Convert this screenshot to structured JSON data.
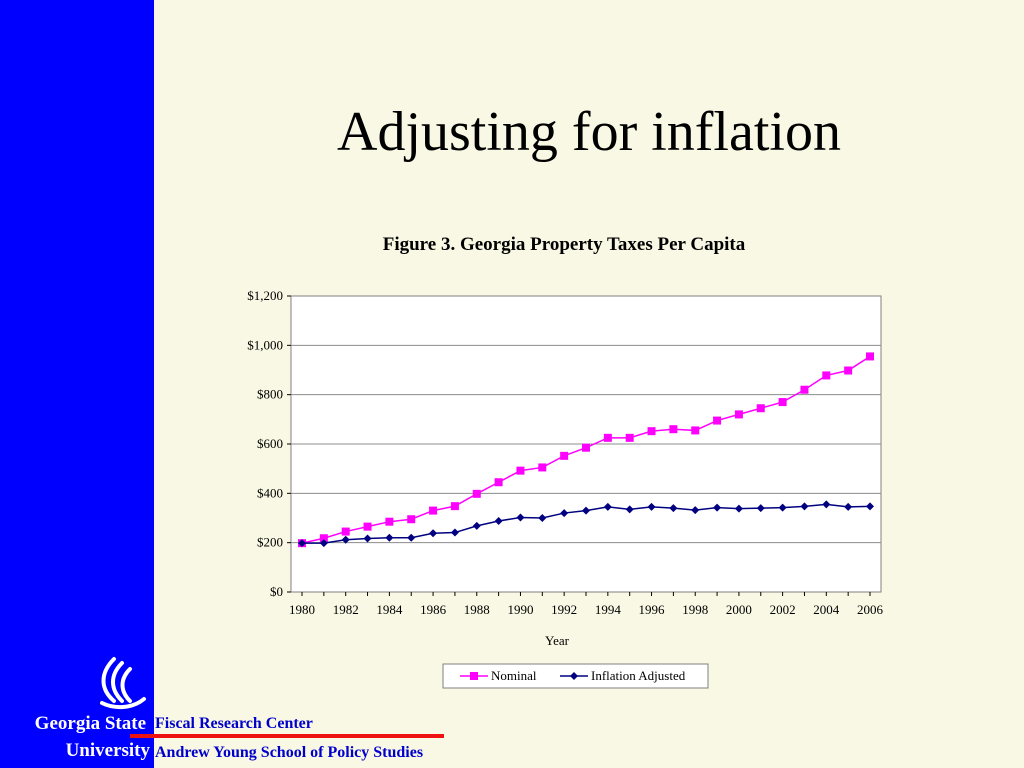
{
  "slide": {
    "title": "Adjusting for inflation",
    "university_line1": "Georgia State",
    "university_line2": "University",
    "footer_center": "Fiscal Research Center",
    "footer_school": "Andrew Young School of Policy Studies",
    "logo_icon": "flame-logo-icon"
  },
  "colors": {
    "sidebar": "#0000ff",
    "background": "#f8f8e4",
    "nominal": "#ff00ff",
    "adjusted": "#000080",
    "footer_text": "#0000cc",
    "footer_rule": "#ee1111"
  },
  "chart_data": {
    "type": "line",
    "title": "Figure 3. Georgia Property Taxes Per Capita",
    "xlabel": "Year",
    "ylabel": "",
    "x": [
      1980,
      1981,
      1982,
      1983,
      1984,
      1985,
      1986,
      1987,
      1988,
      1989,
      1990,
      1991,
      1992,
      1993,
      1994,
      1995,
      1996,
      1997,
      1998,
      1999,
      2000,
      2001,
      2002,
      2003,
      2004,
      2005,
      2006
    ],
    "x_ticks": [
      "1980",
      "1982",
      "1984",
      "1986",
      "1988",
      "1990",
      "1992",
      "1994",
      "1996",
      "1998",
      "2000",
      "2002",
      "2004",
      "2006"
    ],
    "y_ticks": [
      "$0",
      "$200",
      "$400",
      "$600",
      "$800",
      "$1,000",
      "$1,200"
    ],
    "ylim": [
      0,
      1200
    ],
    "grid": true,
    "legend_position": "bottom",
    "series": [
      {
        "name": "Nominal",
        "marker": "square",
        "values": [
          198,
          218,
          245,
          265,
          285,
          295,
          330,
          348,
          398,
          445,
          492,
          505,
          552,
          585,
          625,
          625,
          652,
          660,
          655,
          695,
          720,
          745,
          770,
          820,
          878,
          898,
          955
        ]
      },
      {
        "name": "Inflation Adjusted",
        "marker": "diamond",
        "values": [
          198,
          198,
          212,
          217,
          220,
          220,
          238,
          241,
          268,
          288,
          302,
          300,
          320,
          330,
          345,
          335,
          345,
          340,
          332,
          342,
          338,
          340,
          342,
          347,
          355,
          345,
          347
        ]
      }
    ]
  }
}
